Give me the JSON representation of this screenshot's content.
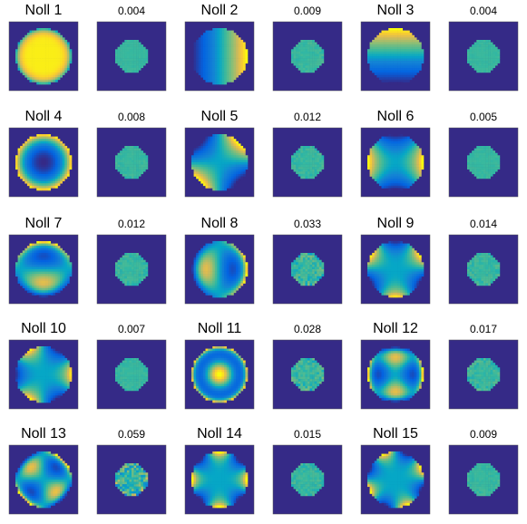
{
  "panels": [
    {
      "title": "Noll 1",
      "error": "0.004"
    },
    {
      "title": "Noll 2",
      "error": "0.009"
    },
    {
      "title": "Noll 3",
      "error": "0.004"
    },
    {
      "title": "Noll 4",
      "error": "0.008"
    },
    {
      "title": "Noll 5",
      "error": "0.012"
    },
    {
      "title": "Noll 6",
      "error": "0.005"
    },
    {
      "title": "Noll 7",
      "error": "0.012"
    },
    {
      "title": "Noll 8",
      "error": "0.033"
    },
    {
      "title": "Noll 9",
      "error": "0.014"
    },
    {
      "title": "Noll 10",
      "error": "0.007"
    },
    {
      "title": "Noll 11",
      "error": "0.028"
    },
    {
      "title": "Noll 12",
      "error": "0.017"
    },
    {
      "title": "Noll 13",
      "error": "0.059"
    },
    {
      "title": "Noll 14",
      "error": "0.015"
    },
    {
      "title": "Noll 15",
      "error": "0.009"
    }
  ]
}
